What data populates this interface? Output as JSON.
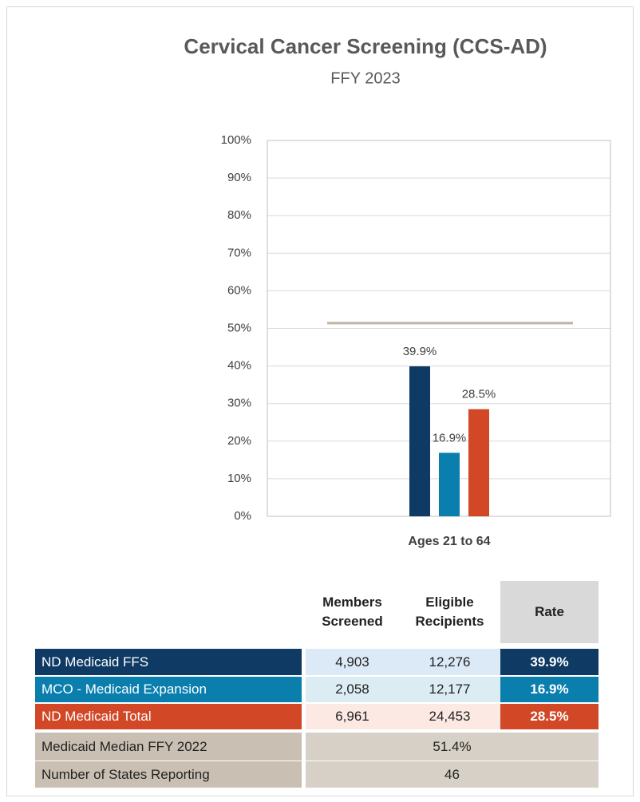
{
  "chart_data": {
    "type": "bar",
    "title": "Cervical Cancer Screening (CCS-AD)",
    "subtitle": "FFY 2023",
    "categories": [
      "Ages 21 to 64"
    ],
    "series": [
      {
        "name": "ND Medicaid FFS",
        "color": "#0e3a64",
        "values": [
          39.9
        ],
        "value_labels": [
          "39.9%"
        ]
      },
      {
        "name": "MCO - Medicaid Expansion",
        "color": "#0a7fae",
        "values": [
          16.9
        ],
        "value_labels": [
          "16.9%"
        ]
      },
      {
        "name": "ND Medicaid Total",
        "color": "#d24726",
        "values": [
          28.5
        ],
        "value_labels": [
          "28.5%"
        ]
      }
    ],
    "reference_line": {
      "value": 51.4,
      "color": "#bfb5a6"
    },
    "ylim": [
      0,
      100
    ],
    "yticks": [
      {
        "value": 0,
        "label": "0%"
      },
      {
        "value": 10,
        "label": "10%"
      },
      {
        "value": 20,
        "label": "20%"
      },
      {
        "value": 30,
        "label": "30%"
      },
      {
        "value": 40,
        "label": "40%"
      },
      {
        "value": 50,
        "label": "50%"
      },
      {
        "value": 60,
        "label": "60%"
      },
      {
        "value": 70,
        "label": "70%"
      },
      {
        "value": 80,
        "label": "80%"
      },
      {
        "value": 90,
        "label": "90%"
      },
      {
        "value": 100,
        "label": "100%"
      }
    ],
    "grid": true
  },
  "table": {
    "columns": [
      "Members Screened",
      "Eligible Recipients",
      "Rate"
    ],
    "rows": [
      {
        "label": "ND Medicaid FFS",
        "cells": [
          "4,903",
          "12,276",
          "39.9%"
        ]
      },
      {
        "label": "MCO - Medicaid Expansion",
        "cells": [
          "2,058",
          "12,177",
          "16.9%"
        ]
      },
      {
        "label": "ND Medicaid Total",
        "cells": [
          "6,961",
          "24,453",
          "28.5%"
        ]
      },
      {
        "label": "Medicaid Median FFY 2022",
        "cells": [
          "51.4%"
        ]
      },
      {
        "label": "Number of States Reporting",
        "cells": [
          "46"
        ]
      }
    ]
  }
}
